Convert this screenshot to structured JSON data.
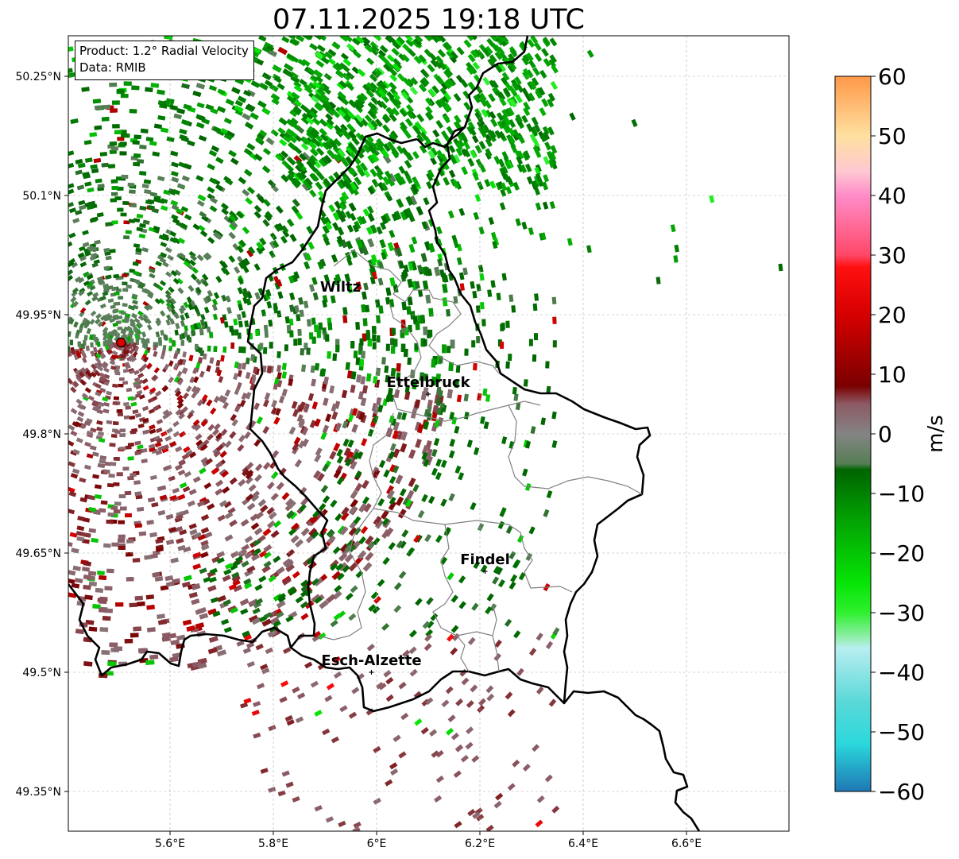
{
  "title": "07.11.2025 19:18 UTC",
  "info": {
    "product": "Product: 1.2° Radial Velocity",
    "data": "Data: RMIB"
  },
  "axes": {
    "lon_ticks": [
      "5.6°E",
      "5.8°E",
      "6°E",
      "6.2°E",
      "6.4°E",
      "6.6°E"
    ],
    "lat_ticks": [
      "50.25°N",
      "50.1°N",
      "49.95°N",
      "49.8°N",
      "49.65°N",
      "49.5°N",
      "49.35°N"
    ],
    "lon_values": [
      5.6,
      5.8,
      6.0,
      6.2,
      6.4,
      6.6
    ],
    "lat_values": [
      50.25,
      50.1,
      49.95,
      49.8,
      49.65,
      49.5,
      49.35
    ],
    "lon_range": [
      5.4,
      6.8
    ],
    "lat_range": [
      49.3,
      50.3
    ],
    "grid": true
  },
  "cities": [
    {
      "name": "Wiltz",
      "lon": 5.93,
      "lat": 49.97,
      "marker": false
    },
    {
      "name": "Ettelbruck",
      "lon": 6.1,
      "lat": 49.85,
      "marker": true
    },
    {
      "name": "Findel",
      "lon": 6.21,
      "lat": 49.627,
      "marker": true
    },
    {
      "name": "Esch-Alzette",
      "lon": 5.99,
      "lat": 49.5,
      "marker": true
    }
  ],
  "radar_site": {
    "lon": 5.505,
    "lat": 49.915,
    "color": "#e00000"
  },
  "colorbar": {
    "label": "m/s",
    "ticks": [
      "60",
      "50",
      "40",
      "30",
      "20",
      "10",
      "0",
      "−10",
      "−20",
      "−30",
      "−40",
      "−50",
      "−60"
    ],
    "range": [
      -60,
      60
    ],
    "stops": [
      {
        "v": -60,
        "c": "#1f77b4"
      },
      {
        "v": -52,
        "c": "#2ad8dc"
      },
      {
        "v": -45,
        "c": "#5ad8d8"
      },
      {
        "v": -36,
        "c": "#b8eef0"
      },
      {
        "v": -34,
        "c": "#8eeea6"
      },
      {
        "v": -30,
        "c": "#2ff02f"
      },
      {
        "v": -25,
        "c": "#06e406"
      },
      {
        "v": -15,
        "c": "#03a603"
      },
      {
        "v": -6,
        "c": "#006400"
      },
      {
        "v": -5,
        "c": "#557e55"
      },
      {
        "v": 0,
        "c": "#848484"
      },
      {
        "v": 5,
        "c": "#8c5a64"
      },
      {
        "v": 8,
        "c": "#7a0000"
      },
      {
        "v": 20,
        "c": "#d60000"
      },
      {
        "v": 28,
        "c": "#ff1010"
      },
      {
        "v": 30,
        "c": "#ff4868"
      },
      {
        "v": 40,
        "c": "#ff8cc8"
      },
      {
        "v": 44,
        "c": "#ffc8d2"
      },
      {
        "v": 50,
        "c": "#ffe0a0"
      },
      {
        "v": 60,
        "c": "#ff9848"
      }
    ]
  }
}
